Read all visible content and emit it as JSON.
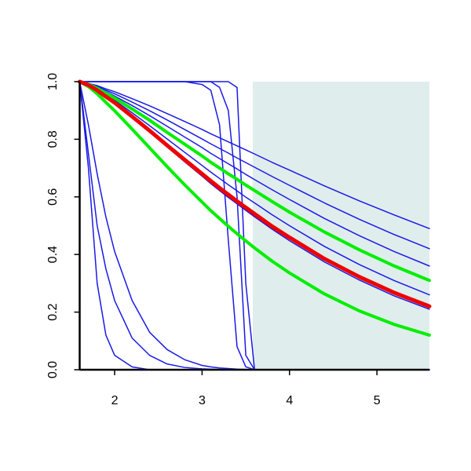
{
  "chart_data": {
    "type": "line",
    "x": [
      1.6,
      1.7,
      1.8,
      1.9,
      2.0,
      2.2,
      2.4,
      2.6,
      2.8,
      3.0,
      3.1,
      3.2,
      3.3,
      3.4,
      3.5,
      3.6,
      3.8,
      4.0,
      4.4,
      4.8,
      5.2,
      5.6
    ],
    "xlim": [
      1.6,
      5.6
    ],
    "xticks": [
      2,
      3,
      4,
      5
    ],
    "ylim": [
      0,
      1
    ],
    "yticks": [
      {
        "value": 0,
        "label": "0.0"
      },
      0.2,
      0.4,
      0.6,
      0.8,
      {
        "value": 1,
        "label": "1.0"
      }
    ],
    "shaded_region": {
      "x": [
        3.58,
        5.6
      ],
      "color": "#e0eded"
    },
    "series": [
      {
        "color": "#1a1ae6",
        "width": 1.5,
        "values": [
          1,
          0.994,
          0.986,
          0.975,
          0.965,
          0.941,
          0.916,
          0.889,
          0.862,
          0.834,
          0.819,
          0.805,
          0.791,
          0.777,
          0.763,
          0.749,
          0.72,
          0.693,
          0.638,
          0.586,
          0.537,
          0.49
        ]
      },
      {
        "color": "#1a1ae6",
        "width": 1.5,
        "values": [
          1,
          0.993,
          0.983,
          0.97,
          0.958,
          0.929,
          0.899,
          0.867,
          0.834,
          0.801,
          0.784,
          0.768,
          0.752,
          0.735,
          0.719,
          0.703,
          0.671,
          0.64,
          0.579,
          0.522,
          0.469,
          0.42
        ]
      },
      {
        "color": "#1a1ae6",
        "width": 1.5,
        "values": [
          1,
          0.992,
          0.98,
          0.965,
          0.95,
          0.917,
          0.882,
          0.845,
          0.808,
          0.771,
          0.751,
          0.733,
          0.715,
          0.697,
          0.678,
          0.66,
          0.625,
          0.591,
          0.525,
          0.465,
          0.41,
          0.36
        ]
      },
      {
        "color": "#1a1ae6",
        "width": 1.5,
        "values": [
          1,
          0.991,
          0.977,
          0.96,
          0.943,
          0.905,
          0.866,
          0.824,
          0.783,
          0.742,
          0.72,
          0.7,
          0.68,
          0.661,
          0.641,
          0.622,
          0.584,
          0.547,
          0.478,
          0.416,
          0.36,
          0.31
        ]
      },
      {
        "color": "#1a1ae6",
        "width": 1.5,
        "values": [
          1,
          0.989,
          0.973,
          0.954,
          0.935,
          0.892,
          0.847,
          0.801,
          0.755,
          0.709,
          0.686,
          0.664,
          0.642,
          0.621,
          0.599,
          0.579,
          0.538,
          0.5,
          0.428,
          0.365,
          0.309,
          0.26
        ]
      },
      {
        "color": "#1a1ae6",
        "width": 1.5,
        "values": [
          1,
          0.988,
          0.969,
          0.947,
          0.925,
          0.876,
          0.825,
          0.773,
          0.722,
          0.672,
          0.646,
          0.622,
          0.598,
          0.576,
          0.553,
          0.531,
          0.488,
          0.448,
          0.374,
          0.311,
          0.256,
          0.21
        ]
      },
      {
        "color": "#1a1ae6",
        "width": 1.5,
        "values": [
          1,
          0.7,
          0.3,
          0.12,
          0.05,
          0.01,
          0,
          0,
          0,
          0,
          0,
          0,
          0,
          0,
          0,
          0,
          0,
          0,
          0,
          0,
          0,
          0
        ]
      },
      {
        "color": "#1a1ae6",
        "width": 1.5,
        "values": [
          1,
          0.75,
          0.5,
          0.35,
          0.24,
          0.11,
          0.05,
          0.02,
          0.008,
          0.003,
          0.002,
          0.001,
          0,
          0,
          0,
          0,
          0,
          0,
          0,
          0,
          0,
          0
        ]
      },
      {
        "color": "#1a1ae6",
        "width": 1.5,
        "values": [
          1,
          0.85,
          0.68,
          0.53,
          0.41,
          0.24,
          0.13,
          0.07,
          0.035,
          0.015,
          0.01,
          0.006,
          0.004,
          0.002,
          0.001,
          0,
          0,
          0,
          0,
          0,
          0,
          0
        ]
      },
      {
        "color": "#1a1ae6",
        "width": 1.5,
        "values": [
          1,
          1,
          1,
          1,
          1,
          1,
          1,
          1,
          1,
          0.99,
          0.97,
          0.85,
          0.45,
          0.08,
          0.01,
          0,
          0,
          0,
          0,
          0,
          0,
          0
        ]
      },
      {
        "color": "#1a1ae6",
        "width": 1.5,
        "values": [
          1,
          1,
          1,
          1,
          1,
          1,
          1,
          1,
          1,
          1,
          1,
          0.98,
          0.9,
          0.6,
          0.05,
          0,
          0,
          0,
          0,
          0,
          0,
          0
        ]
      },
      {
        "color": "#1a1ae6",
        "width": 1.5,
        "values": [
          1,
          1,
          1,
          1,
          1,
          1,
          1,
          1,
          1,
          1,
          1,
          1,
          1,
          0.98,
          0.3,
          0,
          0,
          0,
          0,
          0,
          0,
          0
        ]
      },
      {
        "color": "#00ee00",
        "width": 4,
        "values": [
          1,
          0.991,
          0.977,
          0.96,
          0.943,
          0.905,
          0.866,
          0.824,
          0.783,
          0.742,
          0.72,
          0.7,
          0.68,
          0.661,
          0.641,
          0.622,
          0.584,
          0.547,
          0.478,
          0.416,
          0.36,
          0.31
        ]
      },
      {
        "color": "#00ee00",
        "width": 4,
        "values": [
          1,
          0.983,
          0.958,
          0.928,
          0.899,
          0.835,
          0.77,
          0.705,
          0.642,
          0.582,
          0.552,
          0.525,
          0.498,
          0.472,
          0.447,
          0.423,
          0.377,
          0.336,
          0.263,
          0.204,
          0.157,
          0.12
        ]
      },
      {
        "color": "#ee0000",
        "width": 5,
        "values": [
          1,
          0.988,
          0.97,
          0.948,
          0.927,
          0.879,
          0.83,
          0.779,
          0.729,
          0.68,
          0.655,
          0.631,
          0.608,
          0.585,
          0.563,
          0.541,
          0.498,
          0.459,
          0.385,
          0.322,
          0.267,
          0.22
        ]
      }
    ]
  }
}
